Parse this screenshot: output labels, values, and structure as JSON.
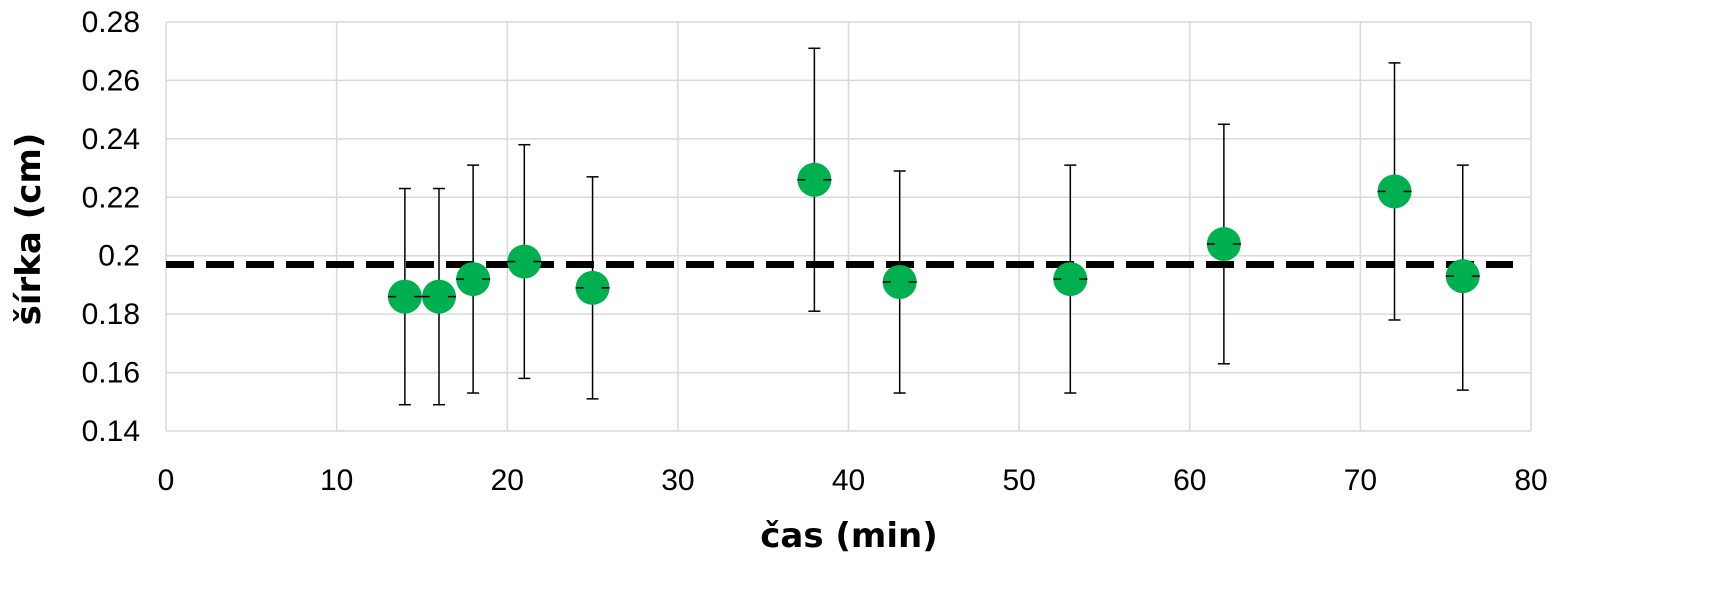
{
  "chart_data": {
    "type": "scatter",
    "title": "",
    "xlabel": "čas (min)",
    "ylabel": "šírka (cm)",
    "xlim": [
      0,
      80
    ],
    "ylim": [
      0.14,
      0.28
    ],
    "x_ticks": [
      0,
      10,
      20,
      30,
      40,
      50,
      60,
      70,
      80
    ],
    "y_ticks": [
      "0.14",
      "0.16",
      "0.18",
      "0.2",
      "0.22",
      "0.24",
      "0.26",
      "0.28"
    ],
    "grid": true,
    "legend": "none",
    "marker_color": "#00b050",
    "reference_line": {
      "y": 0.197,
      "style": "dashed",
      "color": "#000000"
    },
    "points": [
      {
        "x": 14,
        "y": 0.186,
        "err_low": 0.149,
        "err_high": 0.223
      },
      {
        "x": 16,
        "y": 0.186,
        "err_low": 0.149,
        "err_high": 0.223
      },
      {
        "x": 18,
        "y": 0.192,
        "err_low": 0.153,
        "err_high": 0.231
      },
      {
        "x": 21,
        "y": 0.198,
        "err_low": 0.158,
        "err_high": 0.238
      },
      {
        "x": 25,
        "y": 0.189,
        "err_low": 0.151,
        "err_high": 0.227
      },
      {
        "x": 38,
        "y": 0.226,
        "err_low": 0.181,
        "err_high": 0.271
      },
      {
        "x": 43,
        "y": 0.191,
        "err_low": 0.153,
        "err_high": 0.229
      },
      {
        "x": 53,
        "y": 0.192,
        "err_low": 0.153,
        "err_high": 0.231
      },
      {
        "x": 62,
        "y": 0.204,
        "err_low": 0.163,
        "err_high": 0.245
      },
      {
        "x": 72,
        "y": 0.222,
        "err_low": 0.178,
        "err_high": 0.266
      },
      {
        "x": 76,
        "y": 0.193,
        "err_low": 0.154,
        "err_high": 0.231
      }
    ]
  }
}
